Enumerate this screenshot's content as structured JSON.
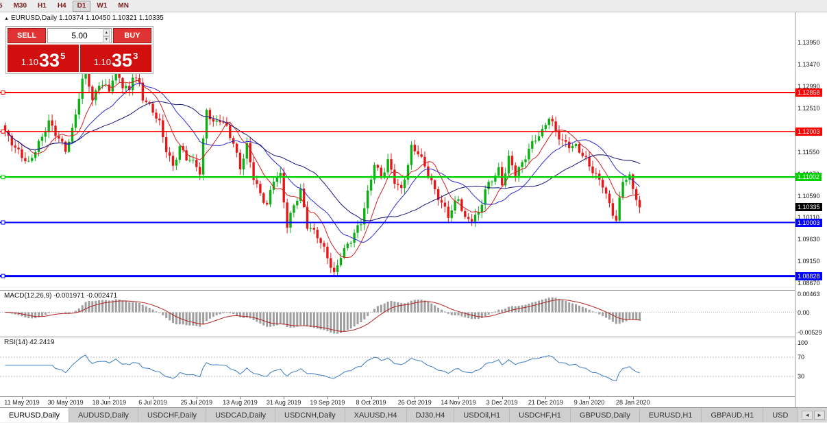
{
  "toolbar": {
    "timeframes": [
      {
        "label": "5",
        "active": false,
        "cut": true
      },
      {
        "label": "M30",
        "active": false,
        "cut": false
      },
      {
        "label": "H1",
        "active": false,
        "cut": false
      },
      {
        "label": "H4",
        "active": false,
        "cut": false
      },
      {
        "label": "D1",
        "active": true,
        "cut": false
      },
      {
        "label": "W1",
        "active": false,
        "cut": false
      },
      {
        "label": "MN",
        "active": false,
        "cut": false
      }
    ]
  },
  "chart_header": {
    "marker": "▲",
    "text": "EURUSD,Daily 1.10374 1.10450 1.10321 1.10335"
  },
  "trade_panel": {
    "sell_label": "SELL",
    "buy_label": "BUY",
    "lot_value": "5.00",
    "spin_up": "▴",
    "spin_down": "▾",
    "sell_price_prefix": "1.10",
    "sell_price_main": "33",
    "sell_price_sup": "5",
    "buy_price_prefix": "1.10",
    "buy_price_main": "35",
    "buy_price_sup": "3"
  },
  "chart_data": {
    "type": "candlestick",
    "symbol": "EURUSD",
    "timeframe": "Daily",
    "ohlc": {
      "open": "1.10374",
      "high": "1.10450",
      "low": "1.10321",
      "close": "1.10335"
    },
    "y_ticks": [
      "1.13950",
      "1.13470",
      "1.12990",
      "1.12510",
      "1.12030",
      "1.11550",
      "1.11070",
      "1.10590",
      "1.10110",
      "1.09630",
      "1.09150",
      "1.08670"
    ],
    "h_lines": [
      {
        "price": 1.12858,
        "label": "1.12858",
        "color": "#ff0000",
        "width": 2
      },
      {
        "price": 1.12003,
        "label": "1.12003",
        "color": "#ff0000",
        "width": 1.5
      },
      {
        "price": 1.11002,
        "label": "1.11002",
        "color": "#00d200",
        "width": 2.5
      },
      {
        "price": 1.10003,
        "label": "1.10003",
        "color": "#0000ff",
        "width": 2
      },
      {
        "price": 1.08828,
        "label": "1.08828",
        "color": "#0000ff",
        "width": 3
      }
    ],
    "current_price": {
      "value": 1.10335,
      "label": "1.10335",
      "color": "#000000"
    },
    "x_axis": {
      "labels": [
        "11 May 2019",
        "30 May 2019",
        "18 Jun 2019",
        "6 Jul 2019",
        "25 Jul 2019",
        "13 Aug 2019",
        "31 Aug 2019",
        "19 Sep 2019",
        "8 Oct 2019",
        "26 Oct 2019",
        "14 Nov 2019",
        "3 Dec 2019",
        "21 Dec 2019",
        "9 Jan 2020",
        "28 Jan 2020"
      ],
      "first_bar": 5,
      "step_bars": 13
    },
    "candles": {
      "count": 190,
      "up_color": "#0cb014",
      "down_color": "#e81717",
      "anchors": [
        [
          0,
          1.1195
        ],
        [
          3,
          1.1165
        ],
        [
          5,
          1.115
        ],
        [
          7,
          1.1132
        ],
        [
          9,
          1.116
        ],
        [
          11,
          1.1185
        ],
        [
          13,
          1.1218
        ],
        [
          15,
          1.1195
        ],
        [
          18,
          1.1163
        ],
        [
          20,
          1.1205
        ],
        [
          22,
          1.1278
        ],
        [
          24,
          1.1342
        ],
        [
          26,
          1.1262
        ],
        [
          28,
          1.1305
        ],
        [
          31,
          1.1295
        ],
        [
          33,
          1.1342
        ],
        [
          35,
          1.1302
        ],
        [
          37,
          1.1288
        ],
        [
          38,
          1.1322
        ],
        [
          40,
          1.13
        ],
        [
          41,
          1.1272
        ],
        [
          44,
          1.1248
        ],
        [
          46,
          1.1222
        ],
        [
          48,
          1.1162
        ],
        [
          50,
          1.1122
        ],
        [
          52,
          1.1162
        ],
        [
          54,
          1.114
        ],
        [
          57,
          1.1128
        ],
        [
          58,
          1.1112
        ],
        [
          60,
          1.1252
        ],
        [
          62,
          1.1218
        ],
        [
          64,
          1.1225
        ],
        [
          66,
          1.1205
        ],
        [
          68,
          1.1172
        ],
        [
          70,
          1.1122
        ],
        [
          72,
          1.1172
        ],
        [
          74,
          1.1102
        ],
        [
          76,
          1.1062
        ],
        [
          78,
          1.1035
        ],
        [
          80,
          1.1092
        ],
        [
          82,
          1.1102
        ],
        [
          84,
          1.0995
        ],
        [
          86,
          1.1042
        ],
        [
          88,
          1.1072
        ],
        [
          90,
          1.0992
        ],
        [
          93,
          1.0968
        ],
        [
          96,
          1.0925
        ],
        [
          98,
          1.0888
        ],
        [
          100,
          1.0932
        ],
        [
          103,
          1.0962
        ],
        [
          106,
          1.0998
        ],
        [
          108,
          1.1062
        ],
        [
          110,
          1.1132
        ],
        [
          112,
          1.1102
        ],
        [
          114,
          1.1138
        ],
        [
          116,
          1.1092
        ],
        [
          118,
          1.1068
        ],
        [
          120,
          1.1125
        ],
        [
          121,
          1.1162
        ],
        [
          123,
          1.1155
        ],
        [
          126,
          1.1112
        ],
        [
          128,
          1.1072
        ],
        [
          130,
          1.1042
        ],
        [
          132,
          1.1012
        ],
        [
          135,
          1.1052
        ],
        [
          137,
          1.1008
        ],
        [
          139,
          1.1012
        ],
        [
          141,
          1.1022
        ],
        [
          143,
          1.1072
        ],
        [
          145,
          1.1092
        ],
        [
          147,
          1.1112
        ],
        [
          148,
          1.1082
        ],
        [
          150,
          1.1142
        ],
        [
          152,
          1.1112
        ],
        [
          154,
          1.1132
        ],
        [
          156,
          1.1162
        ],
        [
          158,
          1.1182
        ],
        [
          160,
          1.1196
        ],
        [
          162,
          1.1232
        ],
        [
          164,
          1.1202
        ],
        [
          166,
          1.1182
        ],
        [
          168,
          1.1172
        ],
        [
          170,
          1.1166
        ],
        [
          172,
          1.1146
        ],
        [
          174,
          1.1122
        ],
        [
          176,
          1.1102
        ],
        [
          178,
          1.1086
        ],
        [
          180,
          1.1042
        ],
        [
          182,
          1.1006
        ],
        [
          184,
          1.1092
        ],
        [
          186,
          1.1096
        ],
        [
          187,
          1.1072
        ],
        [
          189,
          1.10335
        ]
      ]
    },
    "moving_averages": [
      {
        "period": 8,
        "color": "#d02020"
      },
      {
        "period": 18,
        "color": "#2b2bcf"
      },
      {
        "period": 34,
        "color": "#12127a"
      }
    ],
    "macd": {
      "label": "MACD(12,26,9) -0.001971 -0.002471",
      "params": [
        12,
        26,
        9
      ],
      "values_text": [
        "-0.001971",
        "-0.002471"
      ],
      "axis_labels": [
        "0.00463",
        "0.00",
        "-0.00529"
      ],
      "hist_color": "#9e9e9e",
      "signal_color": "#b22222"
    },
    "rsi": {
      "label": "RSI(14) 42.2419",
      "period": 14,
      "value_text": "42.2419",
      "axis_labels": [
        "100",
        "70",
        "30"
      ],
      "levels": [
        70,
        30
      ],
      "color": "#3b7bbf"
    }
  },
  "bottom_tabs": {
    "tabs": [
      "EURUSD,Daily",
      "AUDUSD,Daily",
      "USDCHF,Daily",
      "USDCAD,Daily",
      "USDCNH,Daily",
      "XAUUSD,H4",
      "DJ30,H4",
      "USDOil,H1",
      "USDCHF,H1",
      "GBPUSD,Daily",
      "EURUSD,H1",
      "GBPAUD,H1",
      "USD"
    ],
    "active": 0,
    "scroll_left": "◄",
    "scroll_right": "►"
  }
}
